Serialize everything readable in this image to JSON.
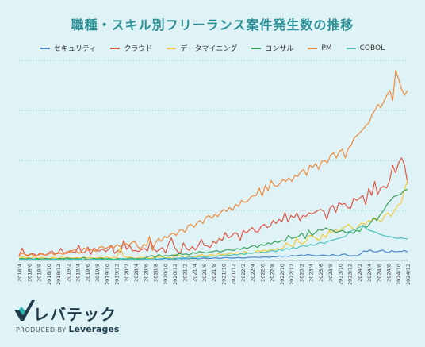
{
  "chart_data": {
    "type": "line",
    "title": "職種・スキル別フリーランス案件発生数の推移",
    "xlabel": "",
    "ylabel": "",
    "grid": true,
    "legend_position": "top",
    "x_tick_labels": [
      "2018/4",
      "2018/6",
      "2018/8",
      "2018/10",
      "2018/12",
      "2019/2",
      "2019/4",
      "2019/6",
      "2019/8",
      "2019/10",
      "2019/12",
      "2020/2",
      "2020/4",
      "2020/6",
      "2020/8",
      "2020/10",
      "2020/12",
      "2021/2",
      "2021/4",
      "2021/6",
      "2021/8",
      "2021/10",
      "2021/12",
      "2022/2",
      "2022/4",
      "2022/6",
      "2022/8",
      "2022/10",
      "2022/12",
      "2023/2",
      "2023/4",
      "2023/6",
      "2023/8",
      "2023/10",
      "2023/12",
      "2024/2",
      "2024/4",
      "2024/6",
      "2024/8",
      "2024/10",
      "2024/12"
    ],
    "series": [
      {
        "name": "セキュリティ",
        "color": "#4a86c8",
        "values": [
          1,
          1,
          2,
          1,
          2,
          2,
          1,
          2,
          3,
          1,
          1,
          2,
          1,
          2,
          2,
          1,
          1,
          2,
          2,
          1,
          1,
          2,
          2,
          1,
          2,
          2,
          2,
          3,
          2,
          1,
          1,
          2,
          2,
          3,
          2,
          2,
          2,
          3,
          2,
          3,
          2,
          3,
          4,
          3,
          2,
          3,
          3,
          4,
          2,
          3,
          3,
          4,
          3,
          4,
          3,
          4,
          4,
          3,
          4,
          5,
          4,
          4,
          5,
          5,
          4,
          5,
          6,
          5,
          5,
          5,
          6,
          5,
          5,
          6,
          6,
          7,
          6,
          6,
          7,
          7,
          6,
          8,
          7,
          9,
          8,
          9,
          8,
          10,
          9,
          10,
          11,
          9,
          12,
          11,
          10,
          9,
          10,
          11,
          10,
          9,
          12,
          10,
          9,
          12,
          13,
          10,
          9,
          10,
          9,
          13,
          19,
          18,
          21,
          18,
          17,
          19,
          21,
          17,
          16,
          20,
          17,
          18,
          18,
          20,
          17
        ]
      },
      {
        "name": "クラウド",
        "color": "#e05545",
        "values": [
          8,
          25,
          12,
          10,
          14,
          13,
          9,
          15,
          12,
          10,
          16,
          19,
          13,
          14,
          24,
          15,
          14,
          20,
          16,
          18,
          30,
          15,
          16,
          27,
          12,
          25,
          20,
          19,
          23,
          18,
          22,
          30,
          14,
          20,
          17,
          40,
          22,
          30,
          19,
          20,
          18,
          22,
          24,
          19,
          40,
          23,
          18,
          22,
          26,
          15,
          33,
          45,
          27,
          18,
          14,
          35,
          24,
          20,
          28,
          21,
          30,
          42,
          30,
          29,
          26,
          38,
          34,
          44,
          40,
          56,
          45,
          48,
          55,
          54,
          40,
          60,
          55,
          60,
          66,
          58,
          57,
          68,
          72,
          66,
          68,
          80,
          74,
          82,
          78,
          96,
          77,
          90,
          85,
          95,
          80,
          90,
          88,
          95,
          93,
          96,
          100,
          102,
          98,
          82,
          104,
          110,
          96,
          115,
          112,
          114,
          105,
          105,
          125,
          120,
          125,
          130,
          112,
          144,
          130,
          158,
          132,
          145,
          148,
          145,
          160,
          190,
          175,
          195,
          205,
          190,
          155
        ]
      },
      {
        "name": "データマイニング",
        "color": "#f2cc3a",
        "values": [
          5,
          7,
          6,
          4,
          5,
          8,
          4,
          6,
          5,
          3,
          6,
          5,
          4,
          7,
          5,
          6,
          4,
          5,
          6,
          4,
          7,
          5,
          6,
          4,
          5,
          6,
          5,
          8,
          4,
          6,
          5,
          25,
          8,
          7,
          6,
          5,
          4,
          7,
          5,
          6,
          4,
          5,
          6,
          8,
          7,
          5,
          6,
          4,
          12,
          10,
          8,
          9,
          6,
          7,
          8,
          10,
          12,
          8,
          10,
          12,
          9,
          14,
          11,
          13,
          12,
          15,
          14,
          16,
          12,
          18,
          16,
          14,
          15,
          20,
          18,
          21,
          19,
          22,
          20,
          24,
          22,
          26,
          35,
          30,
          28,
          45,
          35,
          33,
          40,
          50,
          48,
          44,
          40,
          52,
          46,
          60,
          55,
          62,
          58,
          64,
          68,
          72,
          65,
          60,
          70,
          75,
          72,
          80,
          78,
          85,
          80,
          78,
          90,
          95,
          88,
          100,
          110,
          115,
          140,
          160
        ]
      },
      {
        "name": "コンサル",
        "color": "#3aa05a",
        "values": [
          3,
          4,
          3,
          5,
          2,
          4,
          3,
          3,
          4,
          3,
          3,
          3,
          4,
          3,
          5,
          4,
          3,
          4,
          3,
          6,
          2,
          3,
          4,
          3,
          5,
          3,
          4,
          3,
          2,
          4,
          3,
          3,
          4,
          5,
          3,
          4,
          3,
          5,
          8,
          10,
          6,
          12,
          8,
          10,
          9,
          11,
          10,
          14,
          12,
          13,
          11,
          16,
          14,
          18,
          16,
          15,
          17,
          18,
          20,
          17,
          19,
          22,
          21,
          20,
          24,
          22,
          26,
          24,
          28,
          30,
          26,
          32,
          30,
          35,
          33,
          38,
          36,
          40,
          38,
          50,
          44,
          46,
          48,
          55,
          44,
          60,
          50,
          56,
          62,
          60,
          65,
          62,
          60,
          56,
          58,
          60,
          55,
          58,
          54,
          60,
          58,
          70,
          66,
          74,
          85,
          80,
          92,
          100,
          112,
          120,
          128,
          130,
          132,
          140,
          142
        ]
      },
      {
        "name": "PM",
        "color": "#f0893a",
        "values": [
          10,
          15,
          12,
          8,
          13,
          10,
          9,
          12,
          14,
          10,
          13,
          15,
          11,
          16,
          14,
          12,
          18,
          16,
          20,
          22,
          14,
          18,
          25,
          20,
          22,
          20,
          18,
          26,
          28,
          24,
          26,
          30,
          25,
          32,
          28,
          30,
          34,
          30,
          36,
          38,
          28,
          22,
          32,
          30,
          48,
          20,
          35,
          44,
          38,
          48,
          45,
          52,
          55,
          50,
          60,
          62,
          56,
          70,
          72,
          66,
          75,
          80,
          74,
          86,
          90,
          84,
          92,
          88,
          96,
          102,
          98,
          106,
          100,
          112,
          108,
          120,
          116,
          118,
          126,
          130,
          130,
          145,
          128,
          150,
          140,
          160,
          150,
          148,
          154,
          162,
          158,
          165,
          158,
          170,
          168,
          178,
          182,
          170,
          190,
          186,
          194,
          182,
          198,
          200,
          195,
          210,
          215,
          205,
          218,
          222,
          205,
          224,
          230,
          245,
          250,
          256,
          262,
          270,
          275,
          292,
          300,
          312,
          305,
          318,
          330,
          340,
          320,
          380,
          362,
          342,
          330,
          340
        ]
      },
      {
        "name": "COBOL",
        "color": "#4fc2b8",
        "values": [
          1,
          2,
          1,
          2,
          3,
          2,
          1,
          2,
          2,
          1,
          3,
          2,
          2,
          1,
          3,
          2,
          2,
          3,
          2,
          1,
          2,
          3,
          2,
          2,
          1,
          3,
          2,
          2,
          3,
          2,
          4,
          3,
          2,
          3,
          2,
          4,
          3,
          3,
          2,
          4,
          3,
          4,
          5,
          4,
          3,
          5,
          4,
          6,
          5,
          7,
          6,
          5,
          8,
          7,
          6,
          8,
          9,
          8,
          10,
          9,
          11,
          10,
          12,
          11,
          14,
          12,
          15,
          14,
          16,
          15,
          17,
          16,
          18,
          20,
          18,
          22,
          20,
          24,
          22,
          26,
          24,
          28,
          30,
          28,
          32,
          30,
          34,
          36,
          34,
          38,
          40,
          42,
          44,
          46,
          48,
          55,
          60,
          62,
          66,
          70,
          64,
          60,
          58,
          56,
          52,
          50,
          48,
          48,
          46,
          44,
          45,
          44,
          43
        ]
      }
    ]
  },
  "logo": {
    "brand": "レバテック",
    "produced_by": "PRODUCED BY",
    "company": "Leverages"
  }
}
